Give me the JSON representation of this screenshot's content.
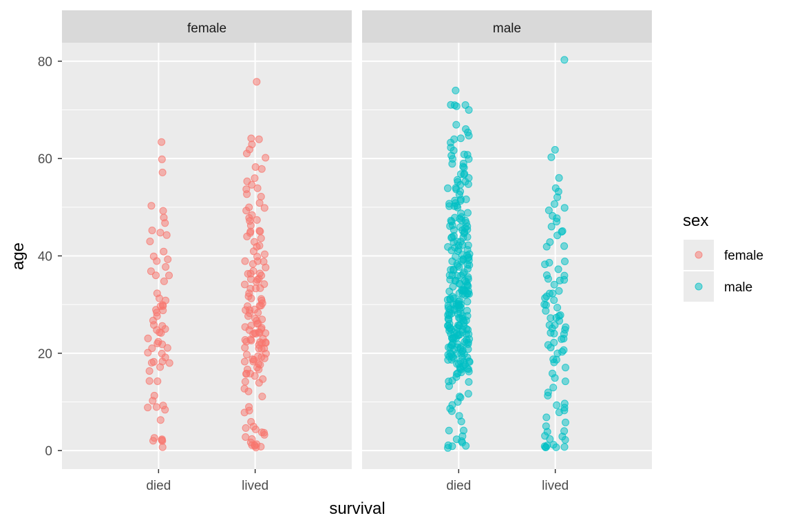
{
  "chart_data": {
    "type": "scatter",
    "jitter": true,
    "xlabel": "survival",
    "ylabel": "age",
    "x_categories": [
      "died",
      "lived"
    ],
    "facet_by": "sex",
    "facets": [
      "female",
      "male"
    ],
    "yticks": [
      0,
      20,
      40,
      60,
      80
    ],
    "ylim": [
      -3.8,
      83.8
    ],
    "grid": true,
    "point_alpha": 0.5,
    "legend": {
      "title": "sex",
      "position": "right",
      "entries": [
        {
          "label": "female",
          "color": "#F8766D"
        },
        {
          "label": "male",
          "color": "#00BFC4"
        }
      ]
    },
    "series": [
      {
        "name": "female",
        "color": "#F8766D",
        "groups": {
          "died": [
            60,
            63,
            57,
            50,
            49,
            48,
            47,
            45,
            45,
            44,
            43,
            41,
            40,
            39,
            39,
            38,
            37,
            36,
            36,
            35,
            32,
            31,
            31,
            30,
            30,
            30,
            29,
            29,
            28,
            28,
            27,
            26,
            26,
            25,
            25,
            24,
            24,
            23,
            22,
            22,
            22,
            21,
            21,
            20,
            20,
            19,
            18,
            18,
            18,
            18,
            17,
            16,
            14.5,
            14,
            11,
            10,
            9,
            9,
            9,
            8,
            6,
            3,
            2,
            2,
            2,
            2,
            1
          ],
          "lived": [
            76,
            64,
            64,
            63,
            62,
            61,
            60,
            58,
            58,
            56,
            55,
            55,
            54,
            54,
            53,
            52,
            51,
            50,
            50,
            49,
            48,
            48,
            47,
            47,
            46,
            45,
            45,
            45,
            45,
            44,
            44,
            43,
            42,
            42,
            41,
            40,
            40,
            39,
            39,
            39,
            38,
            38,
            37,
            36,
            36,
            36,
            36,
            35,
            35,
            35,
            35,
            34,
            34,
            33,
            33,
            33,
            32,
            32,
            31,
            31,
            31,
            30,
            30,
            30,
            30,
            29,
            29,
            29,
            28,
            28,
            28,
            27,
            27,
            27,
            26,
            26,
            26,
            25,
            25,
            25,
            25,
            24,
            24,
            24,
            24,
            24,
            24,
            23,
            23,
            23,
            23,
            22,
            22,
            22,
            22,
            22,
            22,
            21,
            21,
            21,
            21,
            20,
            20,
            19,
            19,
            19,
            19,
            19,
            18,
            18,
            18,
            18,
            17,
            17,
            17,
            16,
            16,
            16,
            15,
            15,
            14,
            14,
            13,
            12,
            11,
            9,
            8,
            8,
            6,
            5,
            5,
            4,
            4,
            4,
            3,
            3,
            2,
            2,
            1,
            1,
            1,
            1,
            1,
            0.5
          ]
        }
      },
      {
        "name": "male",
        "color": "#00BFC4",
        "groups": {
          "died": [
            74,
            71,
            71,
            71,
            70.5,
            70,
            67,
            66,
            65,
            65,
            64,
            64,
            63,
            62,
            62,
            61,
            61,
            61,
            60,
            60,
            59,
            59,
            58,
            58,
            57,
            57,
            57,
            56,
            56,
            55,
            55,
            55,
            55,
            54,
            54,
            54,
            53,
            53,
            52,
            52,
            51,
            51,
            51,
            51,
            50,
            50,
            50,
            50,
            49,
            49,
            48,
            48,
            48,
            47,
            47,
            47,
            47,
            47,
            46,
            46,
            46,
            46,
            46,
            45,
            45,
            45,
            45,
            45,
            44,
            44,
            44,
            44,
            44,
            43,
            43,
            43,
            42,
            42,
            42,
            42,
            42,
            41,
            41,
            41,
            41,
            40,
            40,
            40,
            40,
            40,
            40,
            39,
            39,
            39,
            39,
            39,
            38,
            38,
            38,
            38,
            38,
            37,
            37,
            37,
            37,
            37,
            36,
            36,
            36,
            36,
            36,
            36,
            35,
            35,
            35,
            35,
            35,
            35,
            34,
            34,
            34,
            34,
            34,
            34,
            33,
            33,
            33,
            33,
            33,
            33,
            33,
            32,
            32,
            32,
            32,
            32,
            32,
            32,
            31,
            31,
            31,
            31,
            31,
            31,
            31,
            30,
            30,
            30,
            30,
            30,
            30,
            30,
            30,
            29,
            29,
            29,
            29,
            29,
            29,
            29,
            28,
            28,
            28,
            28,
            28,
            28,
            28,
            28,
            27,
            27,
            27,
            27,
            27,
            27,
            27,
            26,
            26,
            26,
            26,
            26,
            26,
            26,
            26,
            25,
            25,
            25,
            25,
            25,
            25,
            25,
            25,
            24,
            24,
            24,
            24,
            24,
            24,
            24,
            24,
            24,
            23,
            23,
            23,
            23,
            23,
            23,
            23,
            22,
            22,
            22,
            22,
            22,
            22,
            22,
            22,
            21,
            21,
            21,
            21,
            21,
            21,
            21,
            21,
            20,
            20,
            20,
            20,
            20,
            20,
            20,
            19,
            19,
            19,
            19,
            19,
            19,
            19,
            18,
            18,
            18,
            18,
            18,
            18,
            18,
            17,
            17,
            17,
            17,
            17,
            17,
            16,
            16,
            16,
            16,
            15,
            14,
            14,
            14,
            13,
            12,
            11,
            11,
            10,
            9,
            9,
            8,
            7,
            6,
            4,
            4,
            3,
            2,
            2,
            2,
            1,
            1,
            1,
            0.5
          ],
          "lived": [
            80,
            62,
            60,
            56,
            54,
            53,
            52,
            51,
            50,
            49,
            48,
            48,
            47,
            46,
            45,
            45,
            44,
            43,
            42,
            42,
            39,
            39,
            38,
            37,
            36,
            36,
            35,
            35,
            35,
            34,
            33,
            32,
            32,
            32,
            31,
            31,
            30,
            30,
            29,
            29,
            28,
            28,
            27,
            27,
            27,
            26,
            26,
            25,
            25,
            25,
            24,
            24,
            24,
            23,
            23,
            22,
            22,
            21,
            21,
            20,
            20,
            19,
            19,
            18,
            17,
            16,
            15,
            14,
            13,
            12,
            11,
            10,
            9,
            9,
            8,
            8,
            7,
            6,
            5,
            4,
            4,
            3,
            3,
            2,
            2,
            1,
            1,
            1,
            1,
            0.9,
            0.8,
            0.5
          ]
        }
      }
    ]
  }
}
